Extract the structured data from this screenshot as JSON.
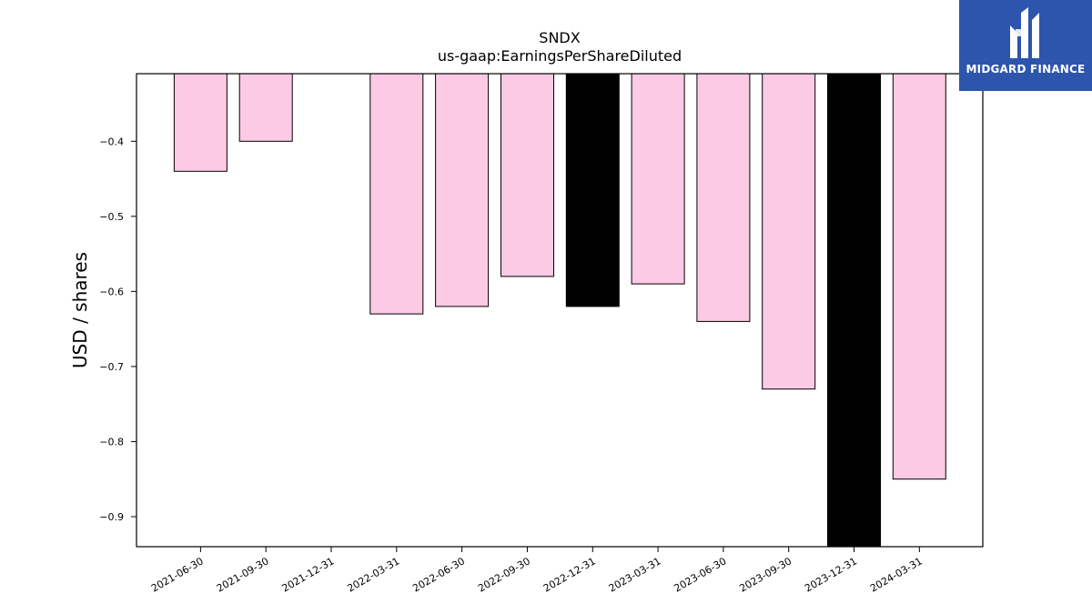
{
  "chart_data": {
    "type": "bar",
    "title": "SNDX",
    "subtitle": "us-gaap:EarningsPerShareDiluted",
    "ylabel": "USD / shares",
    "xlabel": "",
    "categories": [
      "2021-06-30",
      "2021-09-30",
      "2021-12-31",
      "2022-03-31",
      "2022-06-30",
      "2022-09-30",
      "2022-12-31",
      "2023-03-31",
      "2023-06-30",
      "2023-09-30",
      "2023-12-31",
      "2024-03-31"
    ],
    "values": [
      -0.44,
      -0.4,
      null,
      -0.63,
      -0.62,
      -0.58,
      -0.62,
      -0.59,
      -0.64,
      -0.73,
      -0.94,
      -0.85
    ],
    "highlight": [
      false,
      false,
      false,
      false,
      false,
      false,
      true,
      false,
      false,
      false,
      true,
      false
    ],
    "ylim": [
      -0.94,
      -0.31
    ],
    "yticks": [
      -0.4,
      -0.5,
      -0.6,
      -0.7,
      -0.8,
      -0.9
    ],
    "ytick_labels": [
      "−0.4",
      "−0.5",
      "−0.6",
      "−0.7",
      "−0.8",
      "−0.9"
    ],
    "bar_color": "#fccae4",
    "highlight_color": "#000000",
    "grid": false
  },
  "logo": {
    "text": "MIDGARD FINANCE",
    "background": "#2d55ad"
  }
}
